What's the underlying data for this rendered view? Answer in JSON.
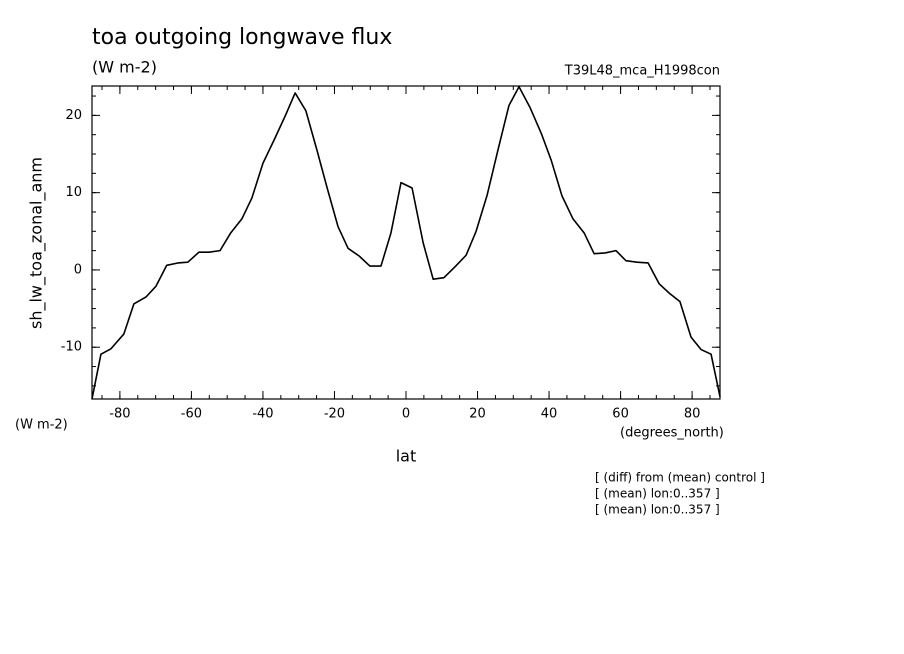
{
  "chart_data": {
    "type": "line",
    "title": "toa outgoing longwave flux",
    "subtitle": "(W m-2)",
    "run_label": "T39L48_mca_H1998con",
    "y_label": "sh_lw_toa_zonal_anm",
    "y_unit": "(W m-2)",
    "x_unit": "(degrees_north)",
    "x_label": "lat",
    "notes": [
      "[ (diff) from (mean) control ]",
      "[ (mean) lon:0..357 ]",
      "[ (mean) lon:0..357 ]"
    ],
    "color": "#000000",
    "xlim": [
      -87.8,
      87.8
    ],
    "ylim": [
      -16.7,
      23.8
    ],
    "xticks": [
      -80,
      -60,
      -40,
      -20,
      0,
      20,
      40,
      60,
      80
    ],
    "yticks": [
      -10,
      0,
      10,
      20
    ],
    "x": [
      -87.8,
      -85.3,
      -82.5,
      -78.9,
      -76.1,
      -72.7,
      -69.9,
      -66.9,
      -63.8,
      -61.0,
      -57.9,
      -55.1,
      -52.0,
      -49.0,
      -45.9,
      -43.1,
      -40.0,
      -36.9,
      -33.8,
      -31.0,
      -28.0,
      -24.9,
      -22.1,
      -19.0,
      -16.2,
      -13.1,
      -10.1,
      -7.0,
      -4.2,
      -1.4,
      1.7,
      4.8,
      7.6,
      10.6,
      13.7,
      16.8,
      19.6,
      22.7,
      25.7,
      28.8,
      31.6,
      34.7,
      37.8,
      40.6,
      43.6,
      46.7,
      49.8,
      52.6,
      55.7,
      58.7,
      61.5,
      64.6,
      67.7,
      70.8,
      73.6,
      76.6,
      79.7,
      82.5,
      85.3,
      87.8
    ],
    "values": [
      -16.7,
      -10.9,
      -10.2,
      -8.3,
      -4.4,
      -3.5,
      -2.1,
      0.6,
      0.9,
      1.0,
      2.3,
      2.3,
      2.5,
      4.8,
      6.6,
      9.3,
      13.8,
      16.8,
      19.9,
      22.9,
      20.6,
      15.5,
      10.7,
      5.6,
      2.8,
      1.8,
      0.5,
      0.5,
      4.8,
      11.3,
      10.6,
      3.5,
      -1.2,
      -1.0,
      0.4,
      1.9,
      5.0,
      9.7,
      15.5,
      21.3,
      23.7,
      21.0,
      17.7,
      14.2,
      9.6,
      6.6,
      4.8,
      2.1,
      2.2,
      2.5,
      1.2,
      1.0,
      0.9,
      -1.8,
      -3.0,
      -4.1,
      -8.7,
      -10.3,
      -10.9,
      -16.4
    ]
  }
}
